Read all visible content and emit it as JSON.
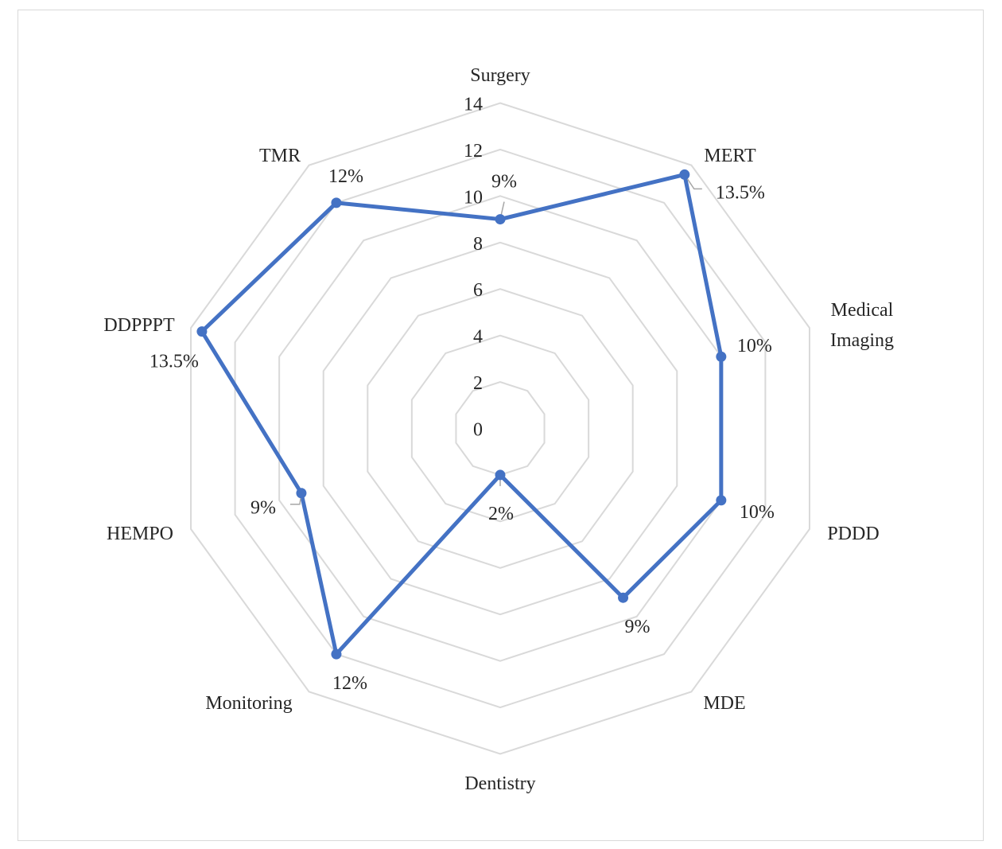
{
  "chart_data": {
    "type": "radar",
    "categories": [
      "Surgery",
      "MERT",
      "Medical Imaging",
      "PDDD",
      "MDE",
      "Dentistry",
      "Monitoring",
      "HEMPO",
      "DDPPPT",
      "TMR"
    ],
    "values": [
      9,
      13.5,
      10,
      10,
      9,
      2,
      12,
      9,
      13.5,
      12
    ],
    "data_labels": [
      "9%",
      "13.5%",
      "10%",
      "10%",
      "9%",
      "2%",
      "12%",
      "9%",
      "13.5%",
      "12%"
    ],
    "radial_ticks": [
      "0",
      "2",
      "4",
      "6",
      "8",
      "10",
      "12",
      "14"
    ],
    "rlim": [
      0,
      14
    ],
    "grid": true,
    "legend": "none",
    "colors": {
      "series": "#4472C4",
      "grid": "#d9d9d9"
    }
  }
}
